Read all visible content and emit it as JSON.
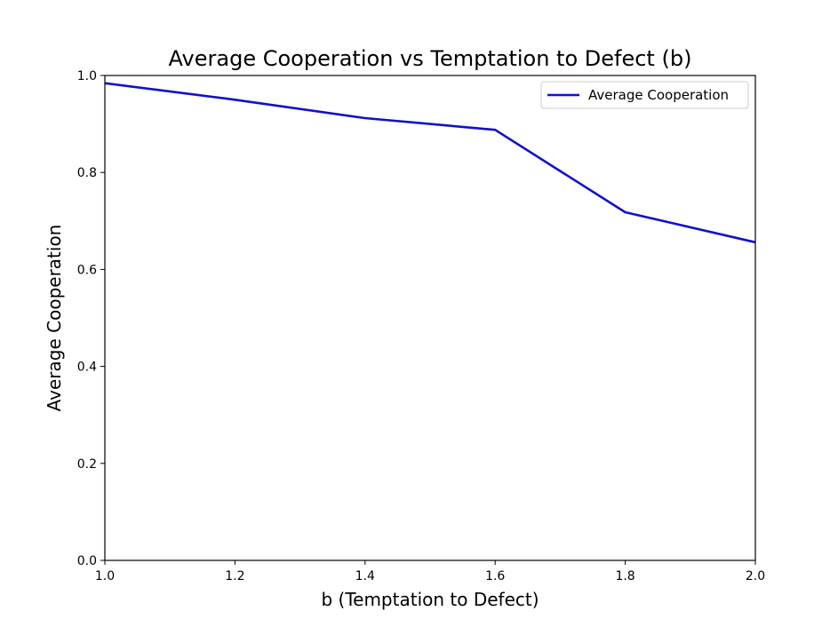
{
  "chart_data": {
    "type": "line",
    "title": "Average Cooperation vs Temptation to Defect (b)",
    "xlabel": "b (Temptation to Defect)",
    "ylabel": "Average Cooperation",
    "xlim": [
      1.0,
      2.0
    ],
    "ylim": [
      0.0,
      1.0
    ],
    "xticks": [
      "1.0",
      "1.2",
      "1.4",
      "1.6",
      "1.8",
      "2.0"
    ],
    "yticks": [
      "0.0",
      "0.2",
      "0.4",
      "0.6",
      "0.8",
      "1.0"
    ],
    "grid": false,
    "legend": "top-right",
    "series": [
      {
        "name": "Average Cooperation",
        "color": "#1010cc",
        "x": [
          1.0,
          1.2,
          1.4,
          1.6,
          1.8,
          2.0
        ],
        "y": [
          0.984,
          0.95,
          0.912,
          0.888,
          0.718,
          0.656
        ]
      }
    ]
  }
}
